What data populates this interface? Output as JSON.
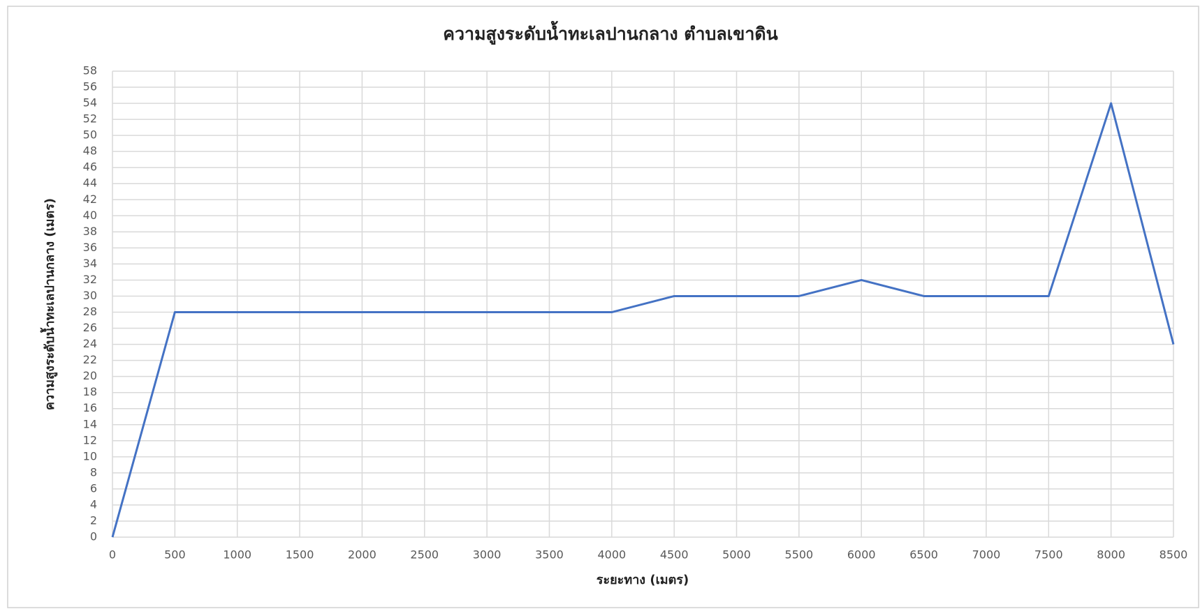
{
  "chart_data": {
    "type": "line",
    "title": "ความสูงระดับน้ำทะเลปานกลาง ตำบลเขาดิน",
    "xlabel": "ระยะทาง (เมตร)",
    "ylabel": "ความสูงระดับน้ำทะเลปานกลาง (เมตร)",
    "x": [
      0,
      500,
      1000,
      1500,
      2000,
      2500,
      3000,
      3500,
      4000,
      4500,
      5000,
      5500,
      6000,
      6500,
      7000,
      7500,
      8000,
      8500
    ],
    "values": [
      0,
      28,
      28,
      28,
      28,
      28,
      28,
      28,
      28,
      30,
      30,
      30,
      32,
      30,
      30,
      30,
      54,
      24
    ],
    "color": "#4472c4",
    "xlim": [
      0,
      8500
    ],
    "xticks": [
      0,
      500,
      1000,
      1500,
      2000,
      2500,
      3000,
      3500,
      4000,
      4500,
      5000,
      5500,
      6000,
      6500,
      7000,
      7500,
      8000,
      8500
    ],
    "ylim": [
      0,
      58
    ],
    "yticks": [
      0,
      2,
      4,
      6,
      8,
      10,
      12,
      14,
      16,
      18,
      20,
      22,
      24,
      26,
      28,
      30,
      32,
      34,
      36,
      38,
      40,
      42,
      44,
      46,
      48,
      50,
      52,
      54,
      56,
      58
    ],
    "grid": true
  }
}
